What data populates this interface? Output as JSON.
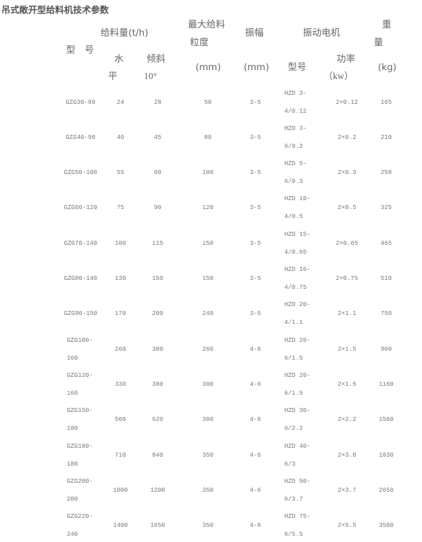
{
  "title": "吊式敞开型给料机技术参数",
  "header": {
    "model": "型　号",
    "feed_capacity": "给料量(t/h)",
    "horizontal_1": "水",
    "horizontal_2": "平",
    "inclined": "倾斜",
    "inclined_angle": "10°",
    "max_size_1": "最大给料",
    "max_size_2": "粒度",
    "max_size_unit": "(mm)",
    "amplitude": "振幅",
    "amplitude_unit": "(mm)",
    "motor": "振动电机",
    "motor_model": "型号",
    "motor_power": "功率",
    "motor_power_unit": "（kw）",
    "weight_1": "重",
    "weight_2": "量",
    "weight_unit": "(kg)"
  },
  "rows": [
    {
      "model": "GZG30-80",
      "h": "24",
      "i": "28",
      "size": "50",
      "amp": "3-5",
      "motor": "HZD 3-4/0.12",
      "power": "2×0.12",
      "weight": "165"
    },
    {
      "model": "GZG40-90",
      "h": "40",
      "i": "45",
      "size": "80",
      "amp": "3-5",
      "motor": "HZD 3-6/0.2",
      "power": "2×0.2",
      "weight": "210"
    },
    {
      "model": "GZG50-100",
      "h": "55",
      "i": "60",
      "size": "100",
      "amp": "3-5",
      "motor": "HZD 5-6/0.3",
      "power": "2×0.3",
      "weight": "258"
    },
    {
      "model": "GZG60-120",
      "h": "75",
      "i": "90",
      "size": "120",
      "amp": "3-5",
      "motor": "HZD 10-4/0.5",
      "power": "2×0.5",
      "weight": "325"
    },
    {
      "model": "GZG70-140",
      "h": "100",
      "i": "115",
      "size": "150",
      "amp": "3-5",
      "motor": "HZD 15-4/0.65",
      "power": "2×0.65",
      "weight": "465"
    },
    {
      "model": "GZG80-140",
      "h": "130",
      "i": "150",
      "size": "150",
      "amp": "3-5",
      "motor": "HZD 16-4/0.75",
      "power": "2×0.75",
      "weight": "510"
    },
    {
      "model": "GZG90-150",
      "h": "170",
      "i": "200",
      "size": "240",
      "amp": "3-5",
      "motor": "HZD 20-4/1.1",
      "power": "2×1.1",
      "weight": "750"
    },
    {
      "model": "GZG100-160",
      "h": "260",
      "i": "300",
      "size": "260",
      "amp": "4-6",
      "motor": "HZD 20-6/1.5",
      "power": "2×1.5",
      "weight": "960"
    },
    {
      "model": "GZG120-160",
      "h": "330",
      "i": "380",
      "size": "300",
      "amp": "4-6",
      "motor": "HZD 20-6/1.5",
      "power": "2×1.5",
      "weight": "1160"
    },
    {
      "model": "GZG150-180",
      "h": "560",
      "i": "620",
      "size": "300",
      "amp": "4-6",
      "motor": "HZD 30-6/2.2",
      "power": "2×2.2",
      "weight": "1560"
    },
    {
      "model": "GZG180-180",
      "h": "710",
      "i": "840",
      "size": "350",
      "amp": "4-6",
      "motor": "HZD 40-6/3",
      "power": "2×3.0",
      "weight": "1830"
    },
    {
      "model": "GZG200-200",
      "h": "1000",
      "i": "1200",
      "size": "350",
      "amp": "4-6",
      "motor": "HZD 50-6/3.7",
      "power": "2×3.7",
      "weight": "2650"
    },
    {
      "model": "GZG220-240",
      "h": "1400",
      "i": "1650",
      "size": "350",
      "amp": "4-6",
      "motor": "HZD 75-6/5.5",
      "power": "2×5.5",
      "weight": "3580"
    }
  ]
}
